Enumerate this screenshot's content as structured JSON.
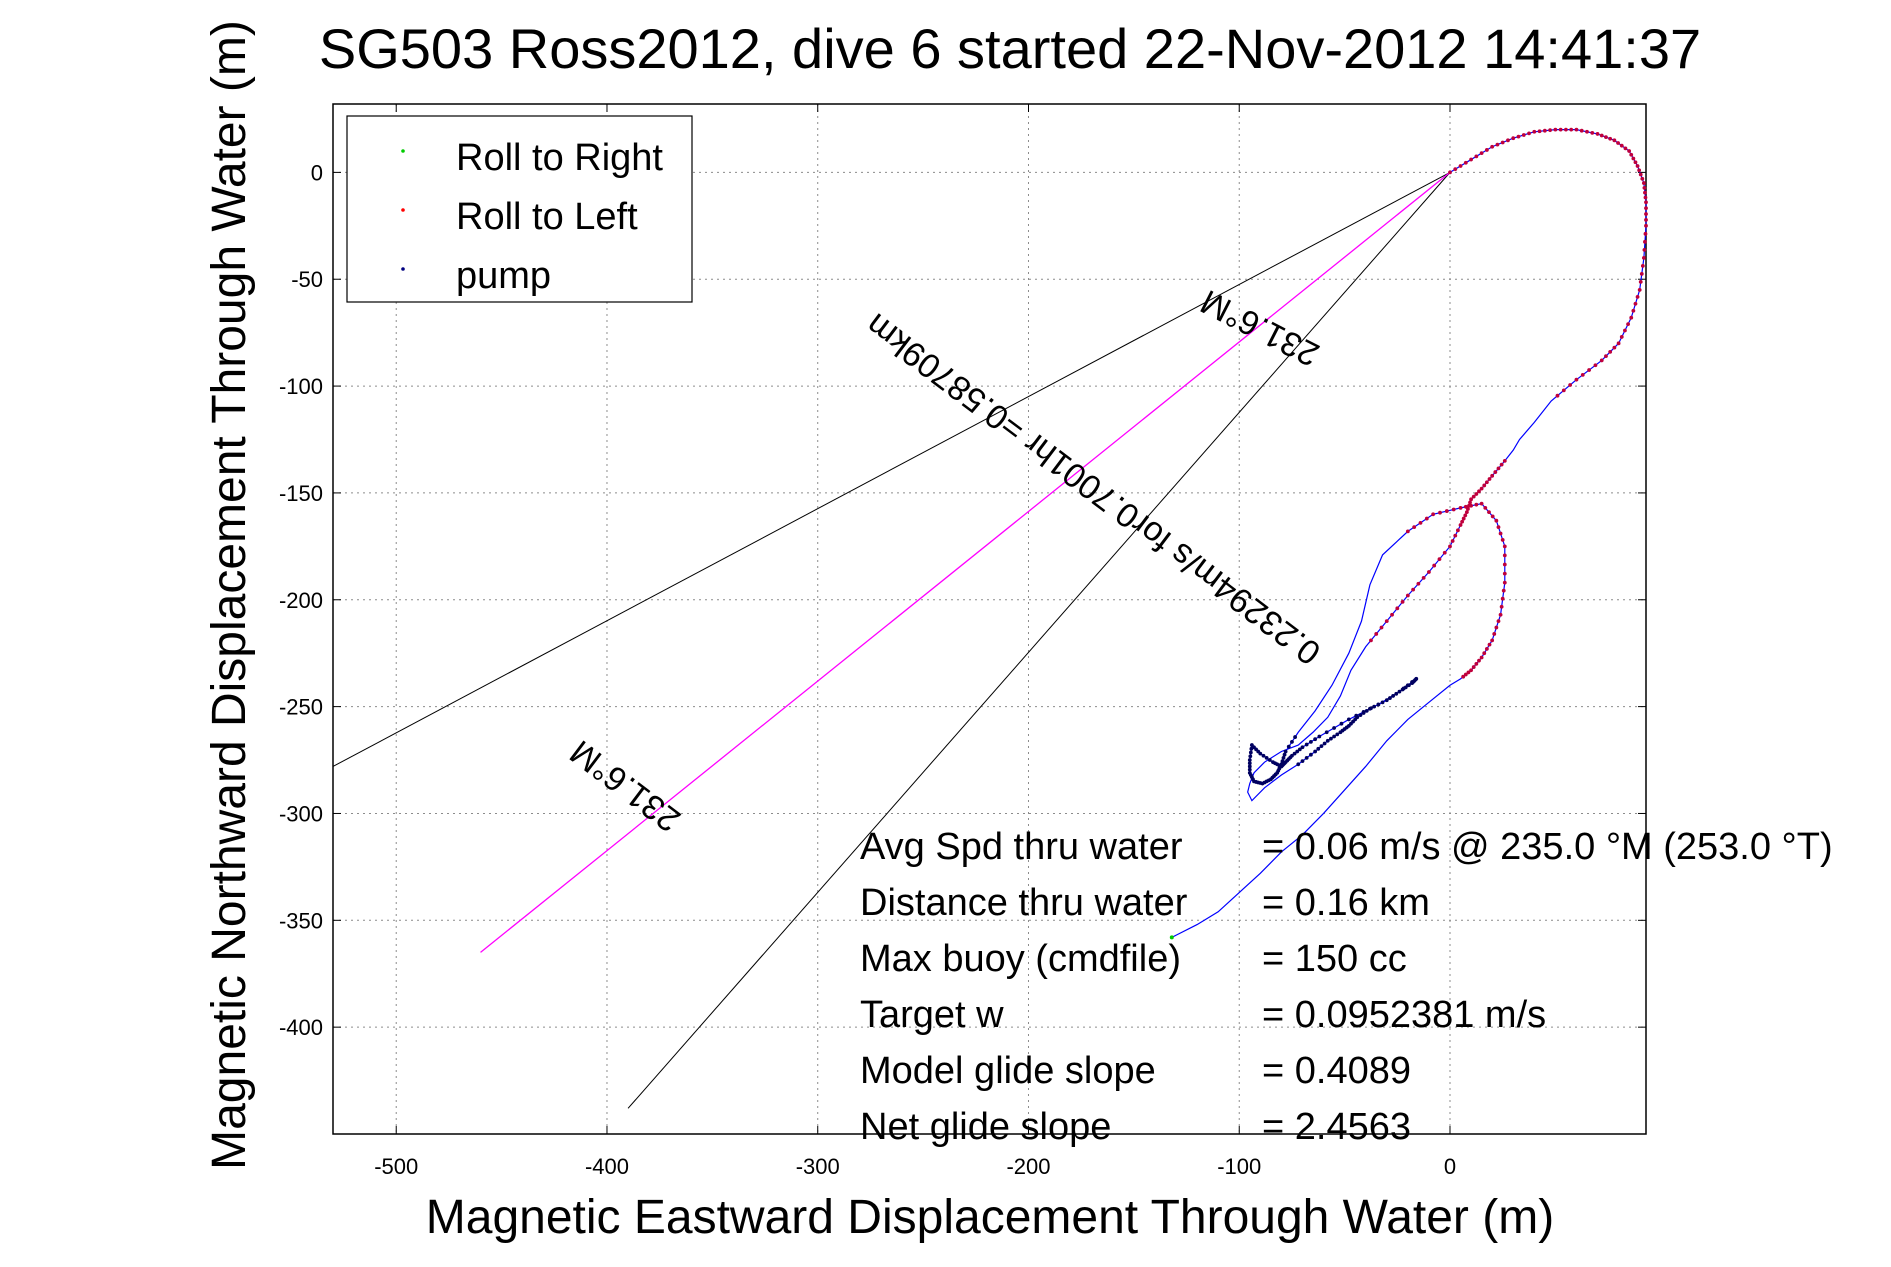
{
  "chart_data": {
    "type": "line",
    "title": "SG503 Ross2012, dive 6 started 22-Nov-2012 14:41:37",
    "xlabel": "Magnetic Eastward Displacement Through Water (m)",
    "ylabel": "Magnetic Northward Displacement Through Water (m)",
    "xlim": [
      -530,
      93
    ],
    "ylim": [
      -450,
      32
    ],
    "x_ticks": [
      -500,
      -400,
      -300,
      -200,
      -100,
      0
    ],
    "y_ticks": [
      0,
      -50,
      -100,
      -150,
      -200,
      -250,
      -300,
      -350,
      -400
    ],
    "x_tick_labels": [
      "-500",
      "-400",
      "-300",
      "-200",
      "-100",
      "0"
    ],
    "y_tick_labels": [
      "0",
      "-50",
      "-100",
      "-150",
      "-200",
      "-250",
      "-300",
      "-350",
      "-400"
    ],
    "grid": true,
    "legend_position": "top-left",
    "legend": [
      {
        "label": "Roll to Right",
        "color": "#00cc00"
      },
      {
        "label": "Roll to Left",
        "color": "#ff0000"
      },
      {
        "label": "pump",
        "color": "#000080"
      }
    ],
    "colors": {
      "track": "#0000ff",
      "current": "#ff00ff",
      "cone": "#000000",
      "roll_left": "#c0003c",
      "pump": "#000060"
    },
    "track": {
      "x": [
        0,
        10,
        20,
        30,
        40,
        50,
        60,
        70,
        78,
        85,
        89,
        92,
        93,
        93,
        92,
        90,
        86,
        80,
        72,
        60,
        48,
        40,
        33,
        30,
        26,
        20,
        15,
        10,
        8,
        5,
        0,
        -10,
        -20,
        -30,
        -40,
        -47,
        -52,
        -58,
        -65,
        -72,
        -80,
        -88,
        -93,
        -95,
        -96,
        -94,
        -88,
        -80,
        -72,
        -64,
        -58,
        -52,
        -48,
        -44,
        -38,
        -30,
        -24,
        -18,
        -16,
        -24,
        -34,
        -48,
        -62,
        -70,
        -75,
        -78,
        -80,
        -84,
        -90,
        -94,
        -95,
        -95,
        -93,
        -89,
        -85,
        -82,
        -80,
        -78,
        -72,
        -64,
        -56,
        -48,
        -42,
        -38,
        -32,
        -20,
        -8,
        5,
        15,
        22,
        26,
        26,
        24,
        20,
        15,
        10,
        5,
        0,
        -10,
        -20,
        -30,
        -40,
        -50,
        -60,
        -70,
        -80,
        -90,
        -100,
        -110,
        -120,
        -130,
        -132
      ],
      "y": [
        0,
        6,
        12,
        16,
        19,
        20,
        20,
        18,
        15,
        10,
        3,
        -5,
        -14,
        -25,
        -40,
        -55,
        -68,
        -80,
        -88,
        -97,
        -107,
        -117,
        -125,
        -130,
        -135,
        -142,
        -148,
        -153,
        -159,
        -165,
        -175,
        -187,
        -198,
        -210,
        -222,
        -233,
        -245,
        -255,
        -262,
        -268,
        -271,
        -276,
        -281,
        -286,
        -290,
        -294,
        -288,
        -282,
        -277,
        -271,
        -266,
        -262,
        -259,
        -255,
        -251,
        -247,
        -243,
        -239,
        -237,
        -243,
        -249,
        -256,
        -264,
        -269,
        -273,
        -276,
        -278,
        -276,
        -272,
        -268,
        -275,
        -281,
        -285,
        -286,
        -284,
        -281,
        -277,
        -271,
        -262,
        -252,
        -240,
        -225,
        -210,
        -193,
        -179,
        -168,
        -160,
        -157,
        -155,
        -163,
        -175,
        -192,
        -207,
        -219,
        -227,
        -233,
        -237,
        -240,
        -248,
        -256,
        -266,
        -278,
        -289,
        -300,
        -310,
        -318,
        -328,
        -337,
        -346,
        -352,
        -357,
        -358
      ]
    },
    "current_line": {
      "label": "0.23294m/s for0.7001hr =0.58709km",
      "heading_label": "231.6°M",
      "x": [
        0,
        -460
      ],
      "y": [
        0,
        -365
      ]
    },
    "cone_lines": [
      {
        "x": [
          0,
          -530
        ],
        "y": [
          0,
          -278
        ]
      },
      {
        "x": [
          0,
          -390
        ],
        "y": [
          0,
          -438
        ]
      }
    ],
    "annotations": [
      {
        "text": "231.6°M",
        "near": "apex"
      },
      {
        "text": "0.23294m/s for0.7001hr =0.58709km",
        "near": "current-line-middle"
      },
      {
        "text": "231.6°M",
        "near": "current-line-end"
      }
    ]
  },
  "stats": [
    {
      "label": "Avg Spd thru water",
      "value": "=  0.06 m/s @ 235.0 °M (253.0 °T)"
    },
    {
      "label": "Distance thru water",
      "value": "=  0.16 km"
    },
    {
      "label": "Max buoy (cmdfile)",
      "value": "= 150 cc"
    },
    {
      "label": "Target w",
      "value": "= 0.0952381 m/s"
    },
    {
      "label": "Model glide slope",
      "value": "= 0.4089"
    },
    {
      "label": "Net glide slope",
      "value": "= 2.4563"
    }
  ]
}
